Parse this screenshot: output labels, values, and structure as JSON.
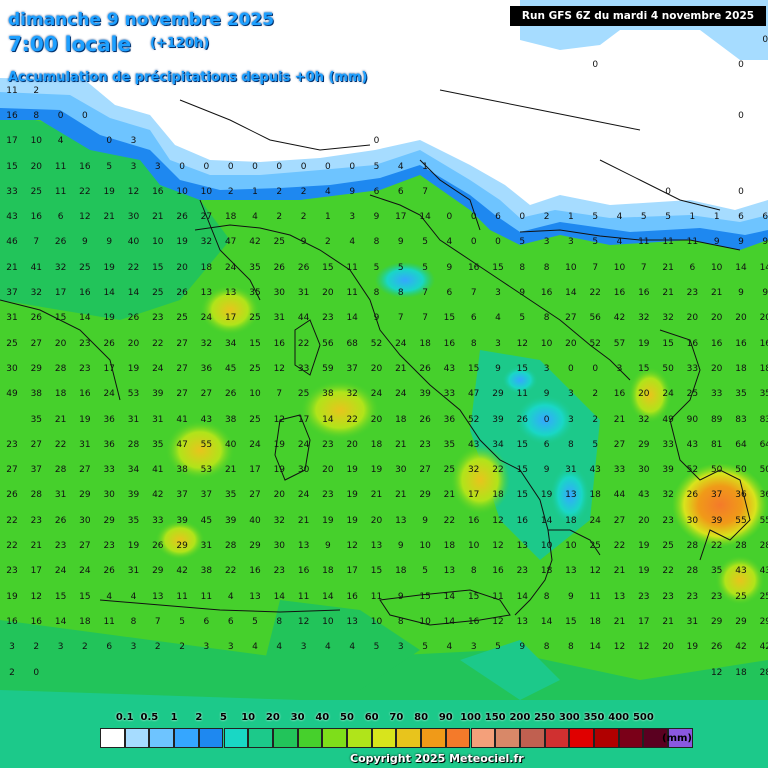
{
  "header": {
    "date": "dimanche 9 novembre 2025",
    "time": "7:00 locale",
    "lead": "(+120h)",
    "description": "Accumulation de précipitations depuis +0h (mm)",
    "run": "Run GFS 6Z du mardi 4 novembre 2025"
  },
  "legend": {
    "unit": "(mm)",
    "labels": [
      "0.1",
      "0.5",
      "1",
      "2",
      "5",
      "10",
      "20",
      "30",
      "40",
      "50",
      "60",
      "70",
      "80",
      "90",
      "100",
      "150",
      "200",
      "250",
      "300",
      "350",
      "400",
      "500"
    ],
    "colors": [
      "#ffffff",
      "#a6dcff",
      "#6ec4ff",
      "#35a6ff",
      "#1e88f0",
      "#19d7c5",
      "#1cc98a",
      "#22c45a",
      "#46d02c",
      "#7ede1a",
      "#b0e41a",
      "#d8e41c",
      "#e8c41c",
      "#f09a18",
      "#f47a2a",
      "#f4a07a",
      "#d88868",
      "#c06050",
      "#d03030",
      "#e00000",
      "#b00000",
      "#7a0018",
      "#5a0020",
      "#8a58e0"
    ]
  },
  "copyright": "Copyright 2025 Meteociel.fr",
  "grid": {
    "rows": [
      [
        "",
        "",
        "",
        "",
        "",
        "",
        "",
        "",
        "",
        "",
        "",
        "",
        "",
        "",
        "",
        "",
        "",
        "",
        "",
        "",
        "",
        "",
        "",
        "",
        "",
        "",
        "",
        "",
        "",
        "",
        "",
        "0"
      ],
      [
        "",
        "",
        "",
        "",
        "",
        "",
        "",
        "",
        "",
        "",
        "",
        "",
        "",
        "",
        "",
        "",
        "",
        "",
        "",
        "",
        "",
        "",
        "",
        "",
        "0",
        "",
        "",
        "",
        "",
        "",
        "0",
        ""
      ],
      [
        "11",
        "2",
        "",
        "",
        "",
        "",
        "",
        "",
        "",
        "",
        "",
        "",
        "",
        "",
        "",
        "",
        "",
        "",
        "",
        "",
        "",
        "",
        "",
        "",
        "",
        "",
        "",
        "",
        "",
        "",
        "",
        ""
      ],
      [
        "16",
        "8",
        "0",
        "0",
        "",
        "",
        "",
        "",
        "",
        "",
        "",
        "",
        "",
        "",
        "",
        "",
        "",
        "",
        "",
        "",
        "",
        "",
        "",
        "",
        "",
        "",
        "",
        "",
        "",
        "",
        "0",
        ""
      ],
      [
        "17",
        "10",
        "4",
        "",
        "0",
        "3",
        "",
        "",
        "",
        "",
        "",
        "",
        "",
        "",
        "",
        "0",
        "",
        "",
        "",
        "",
        "",
        "",
        "",
        "",
        "",
        "",
        "",
        "",
        "",
        "",
        "",
        ""
      ],
      [
        "15",
        "20",
        "11",
        "16",
        "5",
        "3",
        "3",
        "0",
        "0",
        "0",
        "0",
        "0",
        "0",
        "0",
        "0",
        "5",
        "4",
        "1",
        "",
        "",
        "",
        "",
        "",
        "",
        "",
        "",
        "",
        "",
        "",
        "",
        "",
        ""
      ],
      [
        "33",
        "25",
        "11",
        "22",
        "19",
        "12",
        "16",
        "10",
        "10",
        "2",
        "1",
        "2",
        "2",
        "4",
        "9",
        "6",
        "6",
        "7",
        "",
        "",
        "",
        "",
        "",
        "",
        "",
        "",
        "",
        "0",
        "",
        "",
        "0",
        ""
      ],
      [
        "43",
        "16",
        "6",
        "12",
        "21",
        "30",
        "21",
        "26",
        "27",
        "18",
        "4",
        "2",
        "2",
        "1",
        "3",
        "9",
        "17",
        "14",
        "0",
        "0",
        "6",
        "0",
        "2",
        "1",
        "5",
        "4",
        "5",
        "5",
        "1",
        "1",
        "6",
        "6"
      ],
      [
        "46",
        "7",
        "26",
        "9",
        "9",
        "40",
        "10",
        "19",
        "32",
        "47",
        "42",
        "25",
        "9",
        "2",
        "4",
        "8",
        "9",
        "5",
        "4",
        "0",
        "0",
        "5",
        "3",
        "3",
        "5",
        "4",
        "11",
        "11",
        "11",
        "9",
        "9",
        "9"
      ],
      [
        "21",
        "41",
        "32",
        "25",
        "19",
        "22",
        "15",
        "20",
        "18",
        "24",
        "35",
        "26",
        "26",
        "15",
        "11",
        "5",
        "5",
        "5",
        "9",
        "16",
        "15",
        "8",
        "8",
        "10",
        "7",
        "10",
        "7",
        "21",
        "6",
        "10",
        "14",
        "14"
      ],
      [
        "37",
        "32",
        "17",
        "16",
        "14",
        "14",
        "25",
        "26",
        "13",
        "13",
        "35",
        "30",
        "31",
        "20",
        "11",
        "8",
        "8",
        "7",
        "6",
        "7",
        "3",
        "9",
        "16",
        "14",
        "22",
        "16",
        "16",
        "21",
        "23",
        "21",
        "9",
        "9"
      ],
      [
        "31",
        "26",
        "15",
        "14",
        "19",
        "26",
        "23",
        "25",
        "24",
        "17",
        "25",
        "31",
        "44",
        "23",
        "14",
        "9",
        "7",
        "7",
        "15",
        "6",
        "4",
        "5",
        "8",
        "27",
        "56",
        "42",
        "32",
        "32",
        "20",
        "20",
        "20",
        "20"
      ],
      [
        "25",
        "27",
        "20",
        "23",
        "26",
        "20",
        "22",
        "27",
        "32",
        "34",
        "15",
        "16",
        "22",
        "56",
        "68",
        "52",
        "24",
        "18",
        "16",
        "8",
        "3",
        "12",
        "10",
        "20",
        "52",
        "57",
        "19",
        "15",
        "16",
        "16",
        "16",
        "16"
      ],
      [
        "30",
        "29",
        "28",
        "23",
        "17",
        "19",
        "24",
        "27",
        "36",
        "45",
        "25",
        "12",
        "33",
        "59",
        "37",
        "20",
        "21",
        "26",
        "43",
        "15",
        "9",
        "15",
        "3",
        "0",
        "0",
        "3",
        "15",
        "50",
        "33",
        "20",
        "18",
        "18"
      ],
      [
        "49",
        "38",
        "18",
        "16",
        "24",
        "53",
        "39",
        "27",
        "27",
        "26",
        "10",
        "7",
        "25",
        "38",
        "32",
        "24",
        "24",
        "39",
        "33",
        "47",
        "29",
        "11",
        "9",
        "3",
        "2",
        "16",
        "20",
        "24",
        "25",
        "33",
        "35",
        "35"
      ],
      [
        "",
        "35",
        "21",
        "19",
        "36",
        "31",
        "31",
        "41",
        "43",
        "38",
        "25",
        "12",
        "17",
        "14",
        "22",
        "20",
        "18",
        "26",
        "36",
        "52",
        "39",
        "26",
        "0",
        "3",
        "2",
        "21",
        "32",
        "49",
        "90",
        "89",
        "83",
        "83"
      ],
      [
        "23",
        "27",
        "22",
        "31",
        "36",
        "28",
        "35",
        "47",
        "55",
        "40",
        "24",
        "19",
        "24",
        "23",
        "20",
        "18",
        "21",
        "23",
        "35",
        "43",
        "34",
        "15",
        "6",
        "8",
        "5",
        "27",
        "29",
        "33",
        "43",
        "81",
        "64",
        "64"
      ],
      [
        "27",
        "37",
        "28",
        "27",
        "33",
        "34",
        "41",
        "38",
        "53",
        "21",
        "17",
        "19",
        "30",
        "20",
        "19",
        "19",
        "30",
        "27",
        "25",
        "32",
        "22",
        "15",
        "9",
        "31",
        "43",
        "33",
        "30",
        "39",
        "52",
        "50",
        "50",
        "50"
      ],
      [
        "26",
        "28",
        "31",
        "29",
        "30",
        "39",
        "42",
        "37",
        "37",
        "35",
        "27",
        "20",
        "24",
        "23",
        "19",
        "21",
        "21",
        "29",
        "21",
        "17",
        "18",
        "15",
        "19",
        "13",
        "18",
        "44",
        "43",
        "32",
        "26",
        "37",
        "36",
        "36"
      ],
      [
        "22",
        "23",
        "26",
        "30",
        "29",
        "35",
        "33",
        "39",
        "45",
        "39",
        "40",
        "32",
        "21",
        "19",
        "19",
        "20",
        "13",
        "9",
        "22",
        "16",
        "12",
        "16",
        "14",
        "18",
        "24",
        "27",
        "20",
        "23",
        "30",
        "39",
        "55",
        "55"
      ],
      [
        "22",
        "21",
        "23",
        "27",
        "23",
        "19",
        "26",
        "29",
        "31",
        "28",
        "29",
        "30",
        "13",
        "9",
        "12",
        "13",
        "9",
        "10",
        "18",
        "10",
        "12",
        "13",
        "10",
        "10",
        "25",
        "22",
        "19",
        "25",
        "28",
        "22",
        "28",
        "28"
      ],
      [
        "23",
        "17",
        "24",
        "24",
        "26",
        "31",
        "29",
        "42",
        "38",
        "22",
        "16",
        "23",
        "16",
        "18",
        "17",
        "15",
        "18",
        "5",
        "13",
        "8",
        "16",
        "23",
        "18",
        "13",
        "12",
        "21",
        "19",
        "22",
        "28",
        "35",
        "43",
        "43"
      ],
      [
        "19",
        "12",
        "15",
        "15",
        "4",
        "4",
        "13",
        "11",
        "11",
        "4",
        "13",
        "14",
        "11",
        "14",
        "16",
        "11",
        "9",
        "15",
        "14",
        "15",
        "11",
        "14",
        "8",
        "9",
        "11",
        "13",
        "23",
        "23",
        "23",
        "23",
        "25",
        "25"
      ],
      [
        "16",
        "16",
        "14",
        "18",
        "11",
        "8",
        "7",
        "5",
        "6",
        "6",
        "5",
        "8",
        "12",
        "10",
        "13",
        "10",
        "8",
        "10",
        "14",
        "16",
        "12",
        "13",
        "14",
        "15",
        "18",
        "21",
        "17",
        "21",
        "31",
        "29",
        "29",
        "29"
      ],
      [
        "3",
        "2",
        "3",
        "2",
        "6",
        "3",
        "2",
        "2",
        "3",
        "3",
        "4",
        "4",
        "3",
        "4",
        "4",
        "5",
        "3",
        "5",
        "4",
        "3",
        "5",
        "9",
        "8",
        "8",
        "14",
        "12",
        "12",
        "20",
        "19",
        "26",
        "42",
        "42"
      ],
      [
        "2",
        "0",
        "",
        "",
        "",
        "",
        "",
        "",
        "",
        "",
        "",
        "",
        "",
        "",
        "",
        "",
        "",
        "",
        "",
        "",
        "",
        "",
        "",
        "",
        "",
        "",
        "",
        "",
        "",
        "12",
        "18",
        "28"
      ]
    ]
  }
}
